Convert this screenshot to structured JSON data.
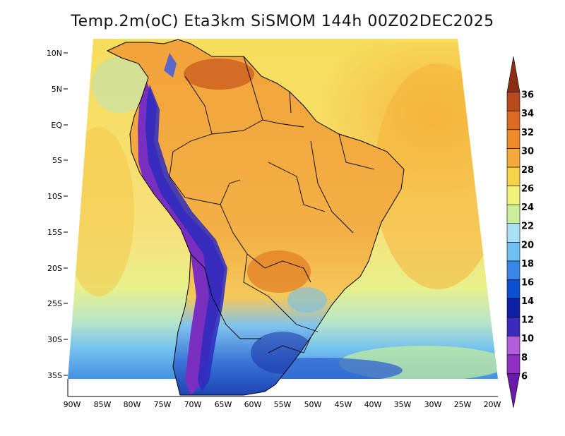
{
  "title": "Temp.2m(oC) Eta3km SiSMOM 144h 00Z02DEC2025",
  "lat_ticks": [
    "10N",
    "5N",
    "EQ",
    "5S",
    "10S",
    "15S",
    "20S",
    "25S",
    "30S",
    "35S"
  ],
  "lon_ticks": [
    "90W",
    "85W",
    "80W",
    "75W",
    "70W",
    "65W",
    "60W",
    "55W",
    "50W",
    "45W",
    "40W",
    "35W",
    "30W",
    "25W",
    "20W"
  ],
  "colorbar": {
    "labels": [
      "6",
      "8",
      "10",
      "12",
      "14",
      "16",
      "18",
      "20",
      "22",
      "24",
      "26",
      "28",
      "30",
      "32",
      "34",
      "36"
    ],
    "colors": [
      "#6a1aa8",
      "#8f2fc4",
      "#b15ed8",
      "#3a2bbd",
      "#0f22a6",
      "#0a4fd0",
      "#3a86e6",
      "#6fbff0",
      "#a9e0f5",
      "#c8f09a",
      "#f2f27a",
      "#f8d24a",
      "#f4aa3a",
      "#ee8a2a",
      "#dd6a22",
      "#b84a1c",
      "#8a2e14"
    ]
  }
}
